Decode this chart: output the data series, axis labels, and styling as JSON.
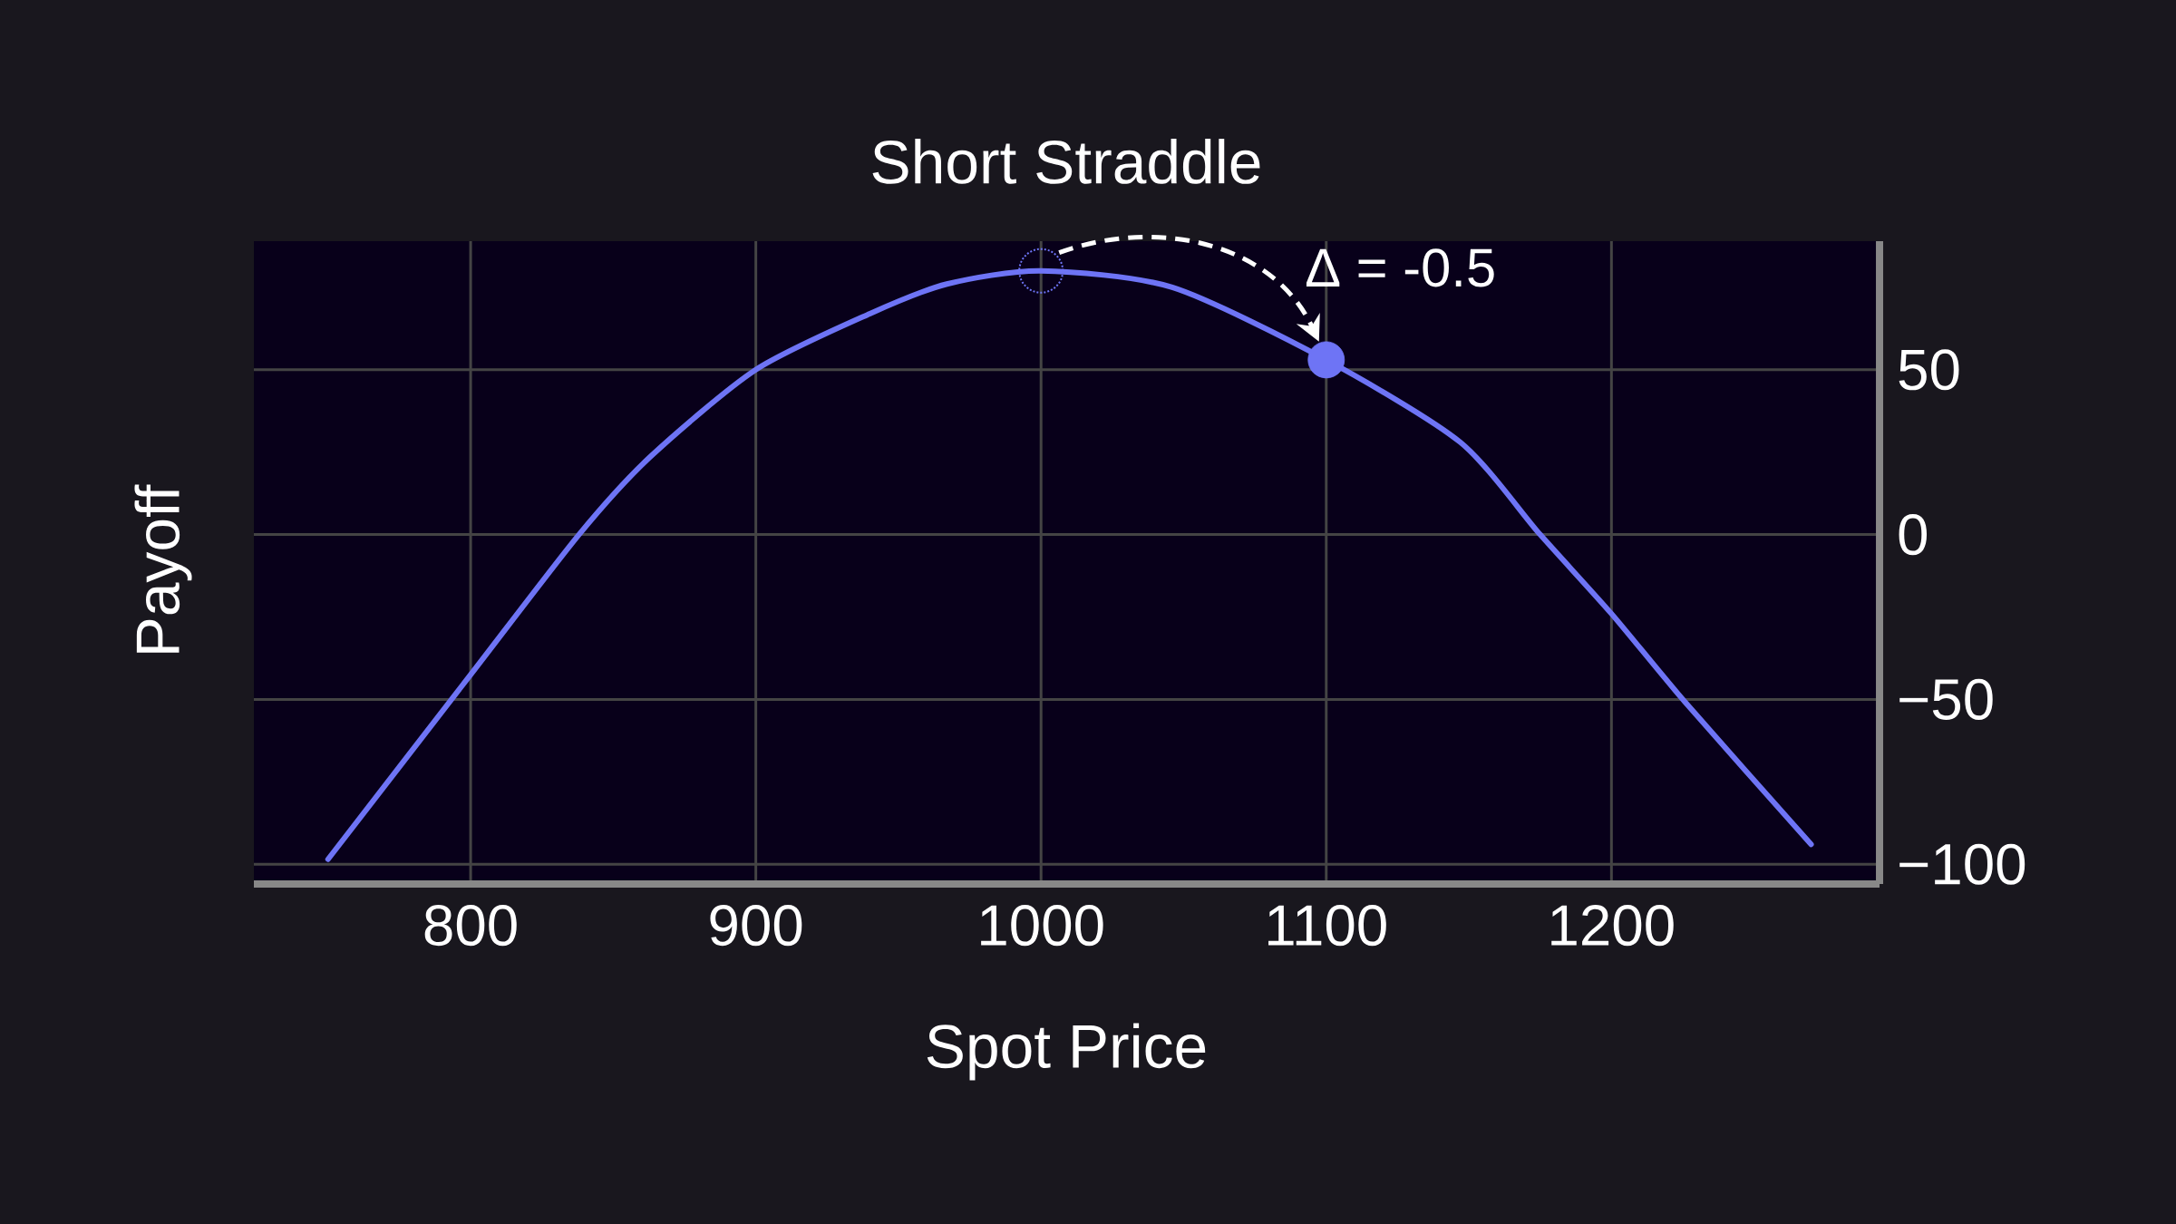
{
  "chart_data": {
    "type": "line",
    "title": "Short Straddle",
    "xlabel": "Spot Price",
    "ylabel": "Payoff",
    "series": [
      {
        "color": "#6e74f5",
        "marker": "none",
        "x": [
          750,
          800,
          838,
          863,
          900,
          940,
          967,
          1000,
          1046,
          1100,
          1147,
          1175,
          1200,
          1226,
          1270
        ],
        "values": [
          -98.5,
          -42.5,
          0,
          23.6,
          50,
          67,
          76,
          80,
          75,
          53,
          28,
          0,
          -24,
          -51,
          -94
        ]
      },
      {
        "type": "scatter",
        "color": "#6e74f5",
        "marker": "circle",
        "x": [
          1100
        ],
        "values": [
          53
        ]
      }
    ],
    "annotations": [
      {
        "text": "Δ = -0.5",
        "x": 1100,
        "y": 53
      }
    ],
    "xlim": [
      724,
      1294
    ],
    "ylim": [
      -106,
      89
    ],
    "xticks": [
      800,
      900,
      1000,
      1100,
      1200
    ],
    "yticks": [
      {
        "value": -100,
        "label": "−100"
      },
      {
        "value": -50,
        "label": "−50"
      },
      0,
      50
    ],
    "grid": true
  }
}
